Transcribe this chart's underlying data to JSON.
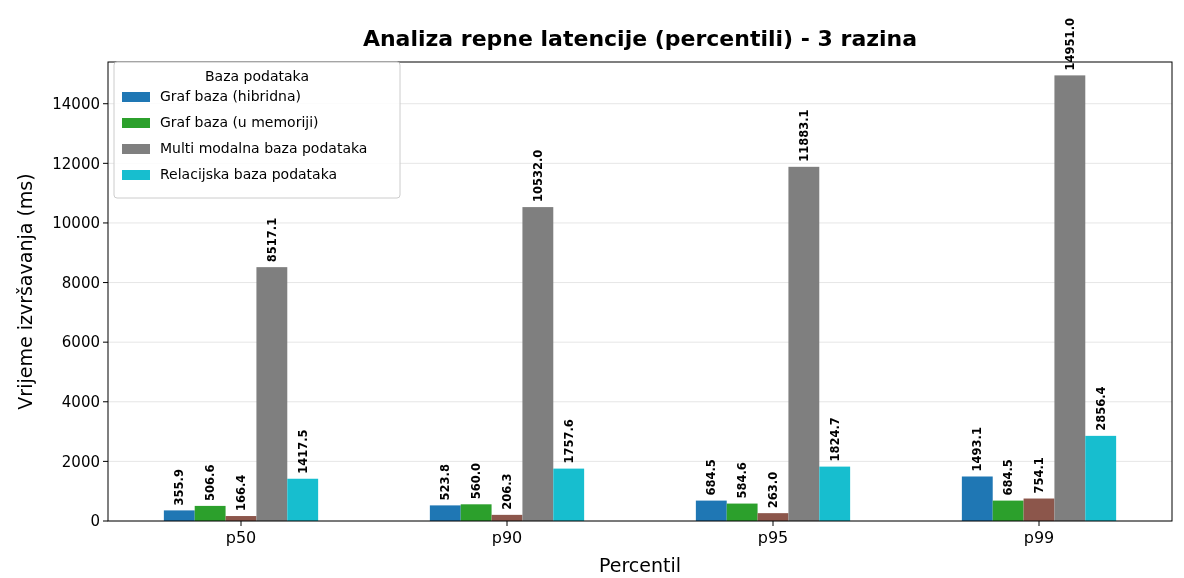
{
  "chart_data": {
    "type": "bar",
    "title": "Analiza repne latencije (percentili) - 3 razina",
    "xlabel": "Percentil",
    "ylabel": "Vrijeme izvršavanja (ms)",
    "legend_title": "Baza podataka",
    "categories": [
      "p50",
      "p90",
      "p95",
      "p99"
    ],
    "series": [
      {
        "name": "Graf baza (hibridna)",
        "color": "#1f77b4",
        "values": [
          355.9,
          523.8,
          684.5,
          1493.1
        ],
        "value_labels": [
          "355.9",
          "523.8",
          "684.5",
          "1493.1"
        ]
      },
      {
        "name": "Graf baza (u memoriji)",
        "color": "#2ca02c",
        "values": [
          506.6,
          560,
          584.6,
          684.5
        ],
        "value_labels": [
          "506.6",
          "560.0",
          "584.6",
          "684.5"
        ]
      },
      {
        "color": "#8c564b",
        "values": [
          166.4,
          206.3,
          263,
          754.1
        ],
        "value_labels": [
          "166.4",
          "206.3",
          "263.0",
          "754.1"
        ]
      },
      {
        "name": "Multi modalna baza podataka",
        "color": "#7f7f7f",
        "values": [
          8517.1,
          10532,
          11883.1,
          14951
        ],
        "value_labels": [
          "8517.1",
          "10532.0",
          "11883.1",
          "14951.0"
        ]
      },
      {
        "name": "Relacijska baza podataka",
        "color": "#17becf",
        "values": [
          1417.5,
          1757.6,
          1824.7,
          2856.4
        ],
        "value_labels": [
          "1417.5",
          "1757.6",
          "1824.7",
          "2856.4"
        ]
      }
    ],
    "ylim": [
      0,
      15400
    ],
    "yticks": [
      0,
      2000,
      4000,
      6000,
      8000,
      10000,
      12000,
      14000
    ],
    "grid": "y",
    "legend": "top left"
  }
}
